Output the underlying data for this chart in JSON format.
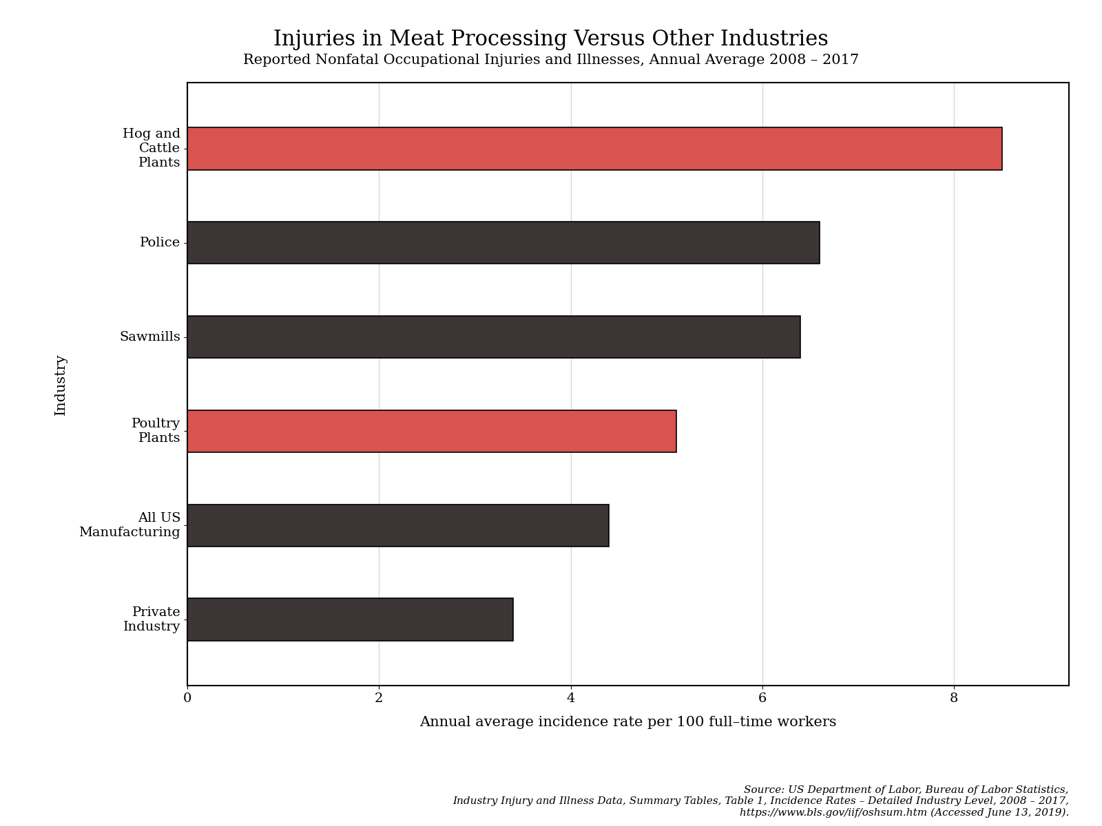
{
  "title": "Injuries in Meat Processing Versus Other Industries",
  "subtitle": "Reported Nonfatal Occupational Injuries and Illnesses, Annual Average 2008 – 2017",
  "categories": [
    "Hog and\nCattle\nPlants",
    "Police",
    "Sawmills",
    "Poultry\nPlants",
    "All US\nManufacturing",
    "Private\nIndustry"
  ],
  "values": [
    8.5,
    6.6,
    6.4,
    5.1,
    4.4,
    3.4
  ],
  "colors": [
    "#d9534f",
    "#3d3535",
    "#3d3535",
    "#d9534f",
    "#3d3535",
    "#3d3535"
  ],
  "xlabel": "Annual average incidence rate per 100 full–time workers",
  "ylabel": "Industry",
  "xlim": [
    0,
    9.2
  ],
  "xticks": [
    0,
    2,
    4,
    6,
    8
  ],
  "source_text": "Source: US Department of Labor, Bureau of Labor Statistics,\nIndustry Injury and Illness Data, Summary Tables, Table 1, Incidence Rates – Detailed Industry Level, 2008 – 2017,\nhttps://www.bls.gov/iif/oshsum.htm (Accessed June 13, 2019).",
  "bg_color": "#ffffff",
  "plot_bg_color": "#ffffff",
  "grid_color": "#d8d8d8",
  "bar_edge_color": "#000000",
  "title_fontsize": 22,
  "subtitle_fontsize": 15,
  "axis_label_fontsize": 15,
  "tick_fontsize": 14,
  "source_fontsize": 11,
  "bar_height": 0.45
}
